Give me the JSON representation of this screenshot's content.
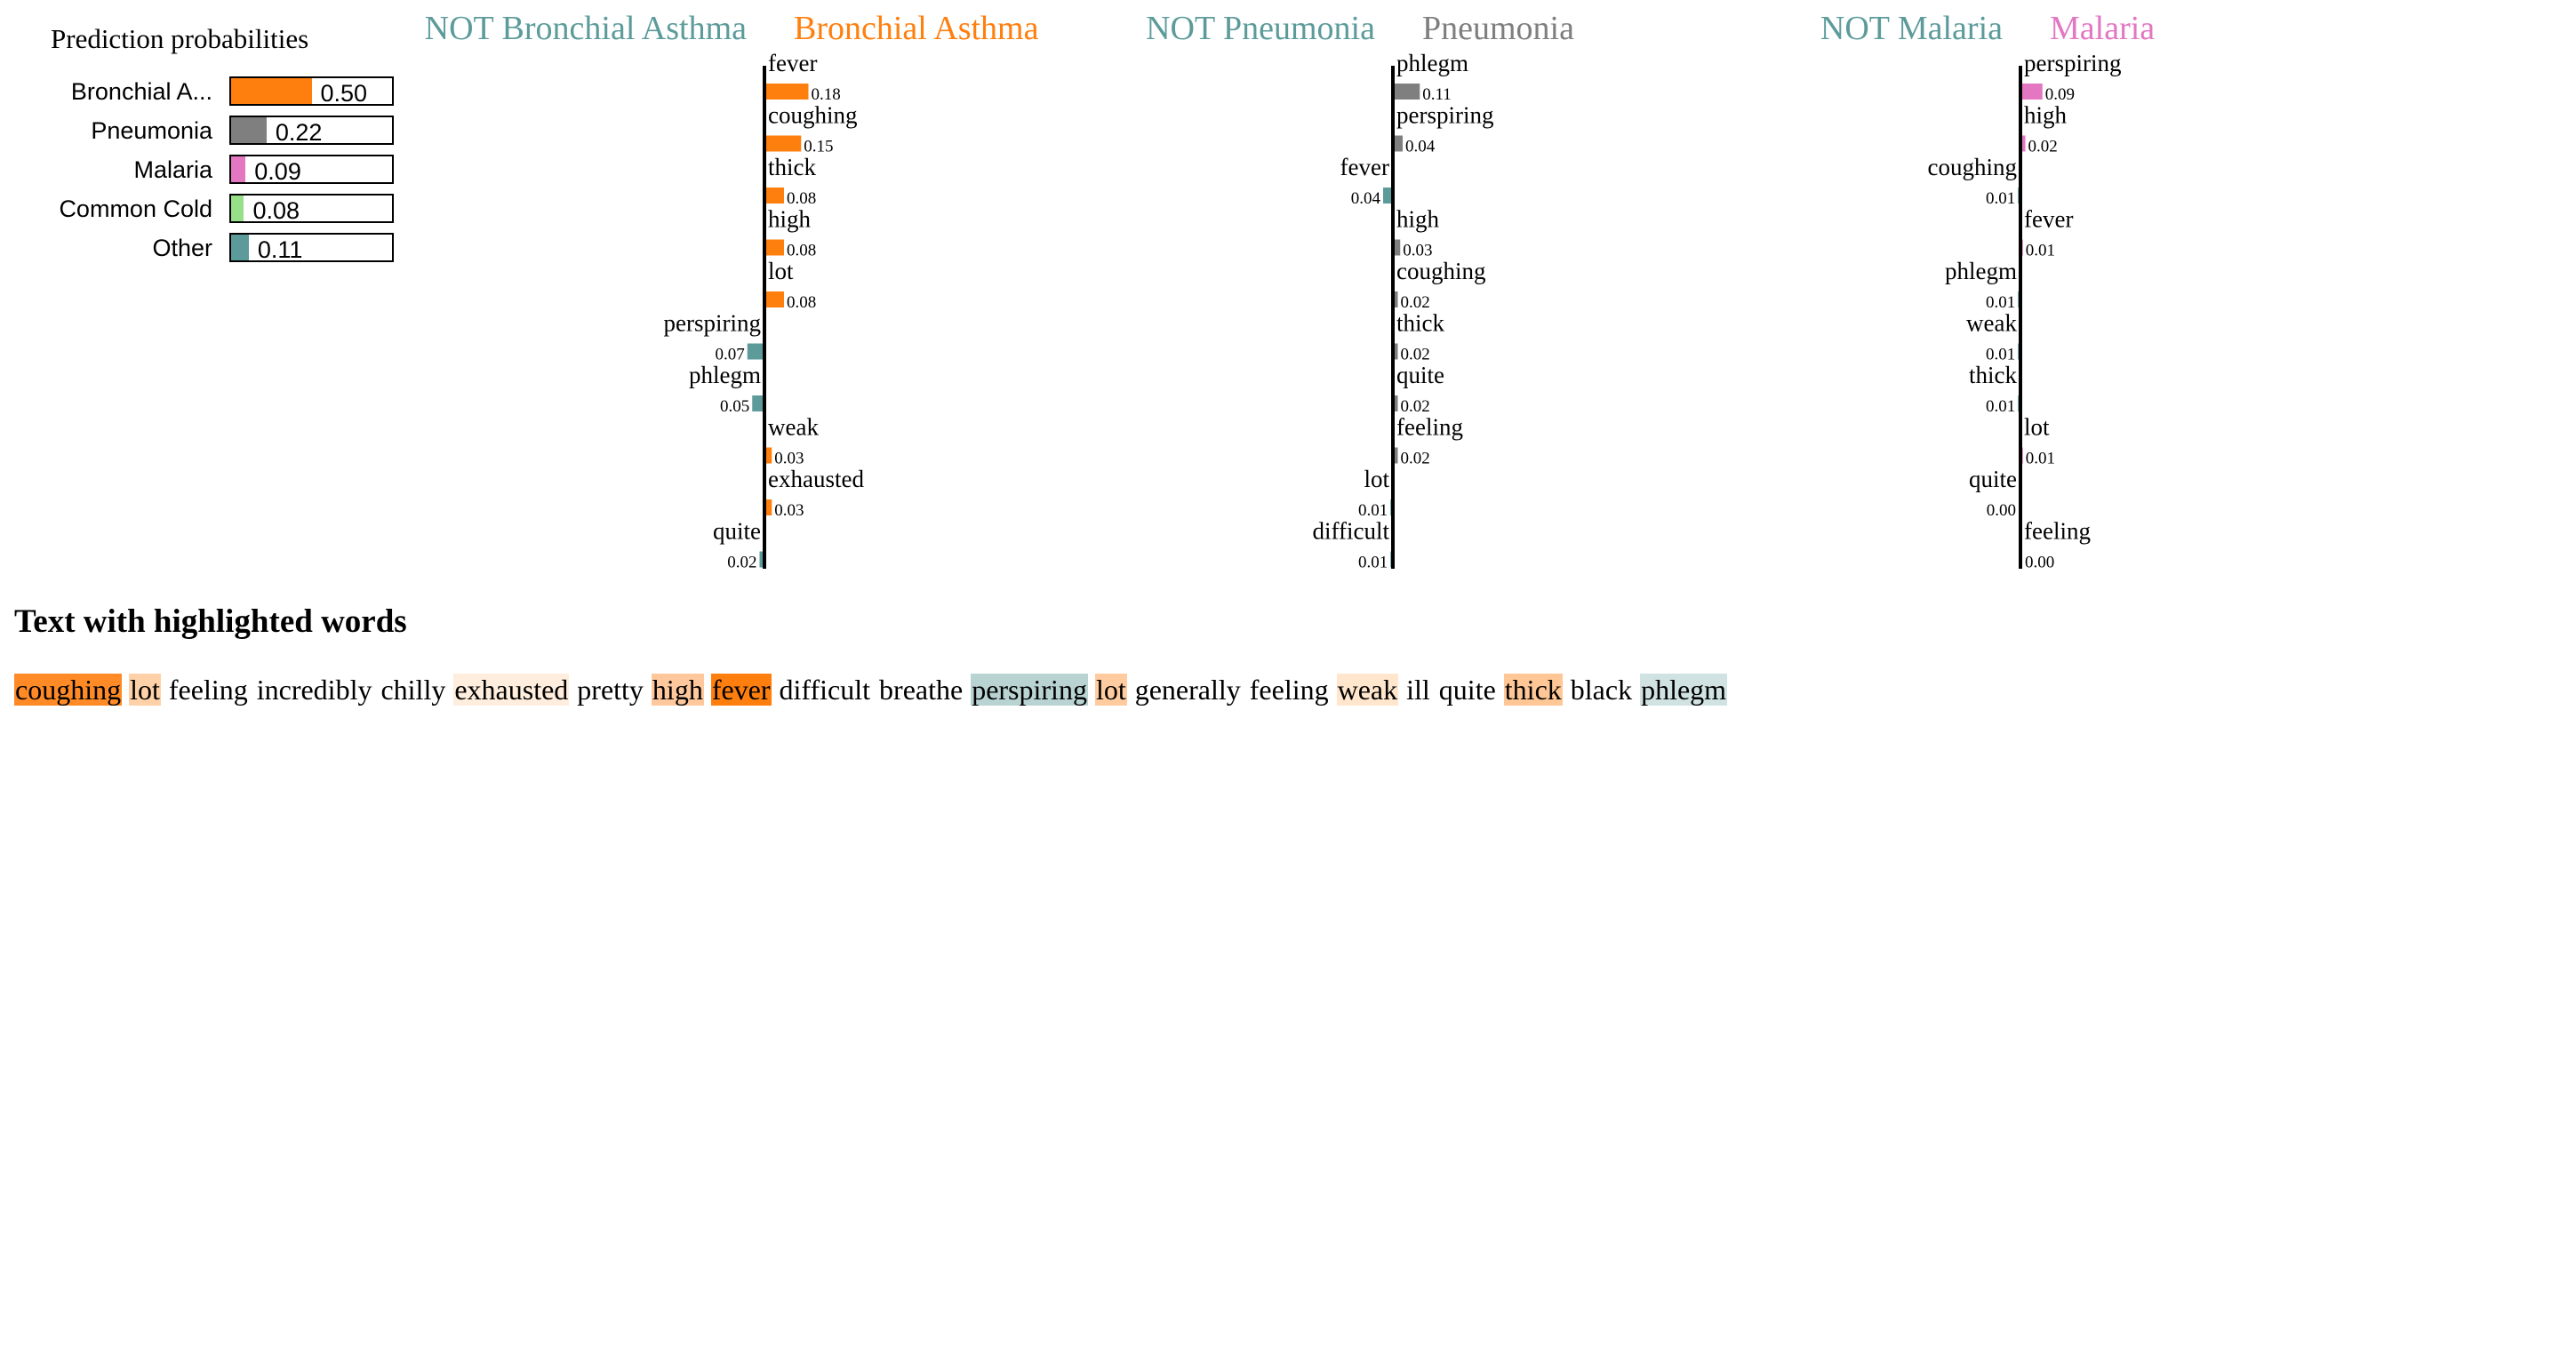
{
  "chart_data": [
    {
      "type": "bar",
      "title": "Prediction probabilities",
      "categories": [
        "Bronchial A...",
        "Pneumonia",
        "Malaria",
        "Common Cold",
        "Other"
      ],
      "values": [
        0.5,
        0.22,
        0.09,
        0.08,
        0.11
      ],
      "value_labels": [
        "0.50",
        "0.22",
        "0.09",
        "0.08",
        "0.11"
      ],
      "colors": [
        "#ff7f0e",
        "#7f7f7f",
        "#e377c2",
        "#98df8a",
        "#5d9b9b"
      ],
      "xlim": [
        0,
        1
      ],
      "orientation": "horizontal",
      "grid": false
    },
    {
      "type": "bar",
      "orientation": "horizontal",
      "class_negative": "NOT Bronchial Asthma",
      "class_positive": "Bronchial Asthma",
      "color_negative": "#5d9b9b",
      "color_positive": "#ff7f0e",
      "features": [
        {
          "word": "fever",
          "value": 0.18,
          "label": "0.18"
        },
        {
          "word": "coughing",
          "value": 0.15,
          "label": "0.15"
        },
        {
          "word": "thick",
          "value": 0.08,
          "label": "0.08"
        },
        {
          "word": "high",
          "value": 0.08,
          "label": "0.08"
        },
        {
          "word": "lot",
          "value": 0.08,
          "label": "0.08"
        },
        {
          "word": "perspiring",
          "value": -0.07,
          "label": "0.07"
        },
        {
          "word": "phlegm",
          "value": -0.05,
          "label": "0.05"
        },
        {
          "word": "weak",
          "value": 0.03,
          "label": "0.03"
        },
        {
          "word": "exhausted",
          "value": 0.03,
          "label": "0.03"
        },
        {
          "word": "quite",
          "value": -0.02,
          "label": "0.02"
        }
      ]
    },
    {
      "type": "bar",
      "orientation": "horizontal",
      "class_negative": "NOT Pneumonia",
      "class_positive": "Pneumonia",
      "color_negative": "#5d9b9b",
      "color_positive": "#7f7f7f",
      "features": [
        {
          "word": "phlegm",
          "value": 0.11,
          "label": "0.11"
        },
        {
          "word": "perspiring",
          "value": 0.04,
          "label": "0.04"
        },
        {
          "word": "fever",
          "value": -0.04,
          "label": "0.04"
        },
        {
          "word": "high",
          "value": 0.03,
          "label": "0.03"
        },
        {
          "word": "coughing",
          "value": 0.02,
          "label": "0.02"
        },
        {
          "word": "thick",
          "value": 0.02,
          "label": "0.02"
        },
        {
          "word": "quite",
          "value": 0.02,
          "label": "0.02"
        },
        {
          "word": "feeling",
          "value": 0.02,
          "label": "0.02"
        },
        {
          "word": "lot",
          "value": -0.01,
          "label": "0.01"
        },
        {
          "word": "difficult",
          "value": -0.01,
          "label": "0.01"
        }
      ]
    },
    {
      "type": "bar",
      "orientation": "horizontal",
      "class_negative": "NOT Malaria",
      "class_positive": "Malaria",
      "color_negative": "#5d9b9b",
      "color_positive": "#e377c2",
      "features": [
        {
          "word": "perspiring",
          "value": 0.09,
          "label": "0.09"
        },
        {
          "word": "high",
          "value": 0.02,
          "label": "0.02"
        },
        {
          "word": "coughing",
          "value": -0.01,
          "label": "0.01"
        },
        {
          "word": "fever",
          "value": 0.01,
          "label": "0.01"
        },
        {
          "word": "phlegm",
          "value": -0.01,
          "label": "0.01"
        },
        {
          "word": "weak",
          "value": -0.01,
          "label": "0.01"
        },
        {
          "word": "thick",
          "value": -0.01,
          "label": "0.01"
        },
        {
          "word": "lot",
          "value": 0.01,
          "label": "0.01"
        },
        {
          "word": "quite",
          "value": -0.0,
          "label": "0.00"
        },
        {
          "word": "feeling",
          "value": 0.0,
          "label": "0.00"
        }
      ]
    }
  ],
  "highlighted_text": {
    "title": "Text with highlighted words",
    "tokens": [
      {
        "text": "coughing",
        "color": "#ff8a26"
      },
      {
        "text": "lot",
        "color": "#ffd1a8"
      },
      {
        "text": "feeling",
        "color": ""
      },
      {
        "text": "incredibly",
        "color": ""
      },
      {
        "text": "chilly",
        "color": ""
      },
      {
        "text": "exhausted",
        "color": "#ffeedd"
      },
      {
        "text": "pretty",
        "color": ""
      },
      {
        "text": "high",
        "color": "#ffc89c"
      },
      {
        "text": "fever",
        "color": "#ff7f0e"
      },
      {
        "text": "difficult",
        "color": ""
      },
      {
        "text": "breathe",
        "color": ""
      },
      {
        "text": "perspiring",
        "color": "#b9d3d3"
      },
      {
        "text": "lot",
        "color": "#ffcb9f"
      },
      {
        "text": "generally",
        "color": ""
      },
      {
        "text": "feeling",
        "color": ""
      },
      {
        "text": "weak",
        "color": "#ffe6cc"
      },
      {
        "text": "ill",
        "color": ""
      },
      {
        "text": "quite",
        "color": ""
      },
      {
        "text": "thick",
        "color": "#ffc796"
      },
      {
        "text": "black",
        "color": ""
      },
      {
        "text": "phlegm",
        "color": "#d0e2e2"
      }
    ]
  }
}
